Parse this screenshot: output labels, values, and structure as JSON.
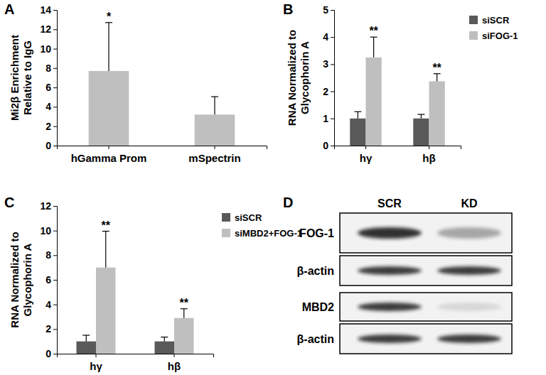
{
  "chart_data": [
    {
      "type": "bar",
      "panel": "A",
      "y_label": [
        "Mi2β Enrichment",
        "Relative to IgG"
      ],
      "categories": [
        "hGamma Prom",
        "mSpectrin"
      ],
      "values": [
        7.7,
        3.2
      ],
      "errors": [
        5.0,
        1.85
      ],
      "significance": [
        "*",
        null
      ],
      "color": "#bfbfbf",
      "ylim": [
        0,
        14
      ],
      "yticks": [
        0,
        2,
        4,
        6,
        8,
        10,
        12,
        14
      ]
    },
    {
      "type": "bar",
      "panel": "B",
      "y_label": [
        "RNA Normalized to",
        "Glycophorin A"
      ],
      "categories": [
        "hγ",
        "hβ"
      ],
      "series": [
        {
          "name": "siSCR",
          "color": "#595959",
          "values": [
            1.0,
            1.0
          ],
          "errors": [
            0.25,
            0.15
          ],
          "significance": [
            null,
            null
          ]
        },
        {
          "name": "siFOG-1",
          "color": "#bfbfbf",
          "values": [
            3.25,
            2.37
          ],
          "errors": [
            0.75,
            0.28
          ],
          "significance": [
            "**",
            "**"
          ]
        }
      ],
      "legend": "upper right",
      "ylim": [
        0,
        5
      ],
      "yticks": [
        0,
        1,
        2,
        3,
        4,
        5
      ]
    },
    {
      "type": "bar",
      "panel": "C",
      "y_label": [
        "RNA Normalized to",
        "Glycophorin A"
      ],
      "categories": [
        "hγ",
        "hβ"
      ],
      "series": [
        {
          "name": "siSCR",
          "color": "#595959",
          "values": [
            1.0,
            1.0
          ],
          "errors": [
            0.5,
            0.35
          ],
          "significance": [
            null,
            null
          ]
        },
        {
          "name": "siMBD2+FOG-1",
          "color": "#bfbfbf",
          "values": [
            7.0,
            2.9
          ],
          "errors": [
            2.95,
            0.75
          ],
          "significance": [
            "**",
            "**"
          ]
        }
      ],
      "legend": "upper right",
      "ylim": [
        0,
        12
      ],
      "yticks": [
        0,
        2,
        4,
        6,
        8,
        10,
        12
      ]
    }
  ],
  "blot": {
    "panel": "D",
    "lanes": [
      "SCR",
      "KD"
    ],
    "rows": [
      "FOG-1",
      "β-actin",
      "MBD2",
      "β-actin"
    ]
  }
}
